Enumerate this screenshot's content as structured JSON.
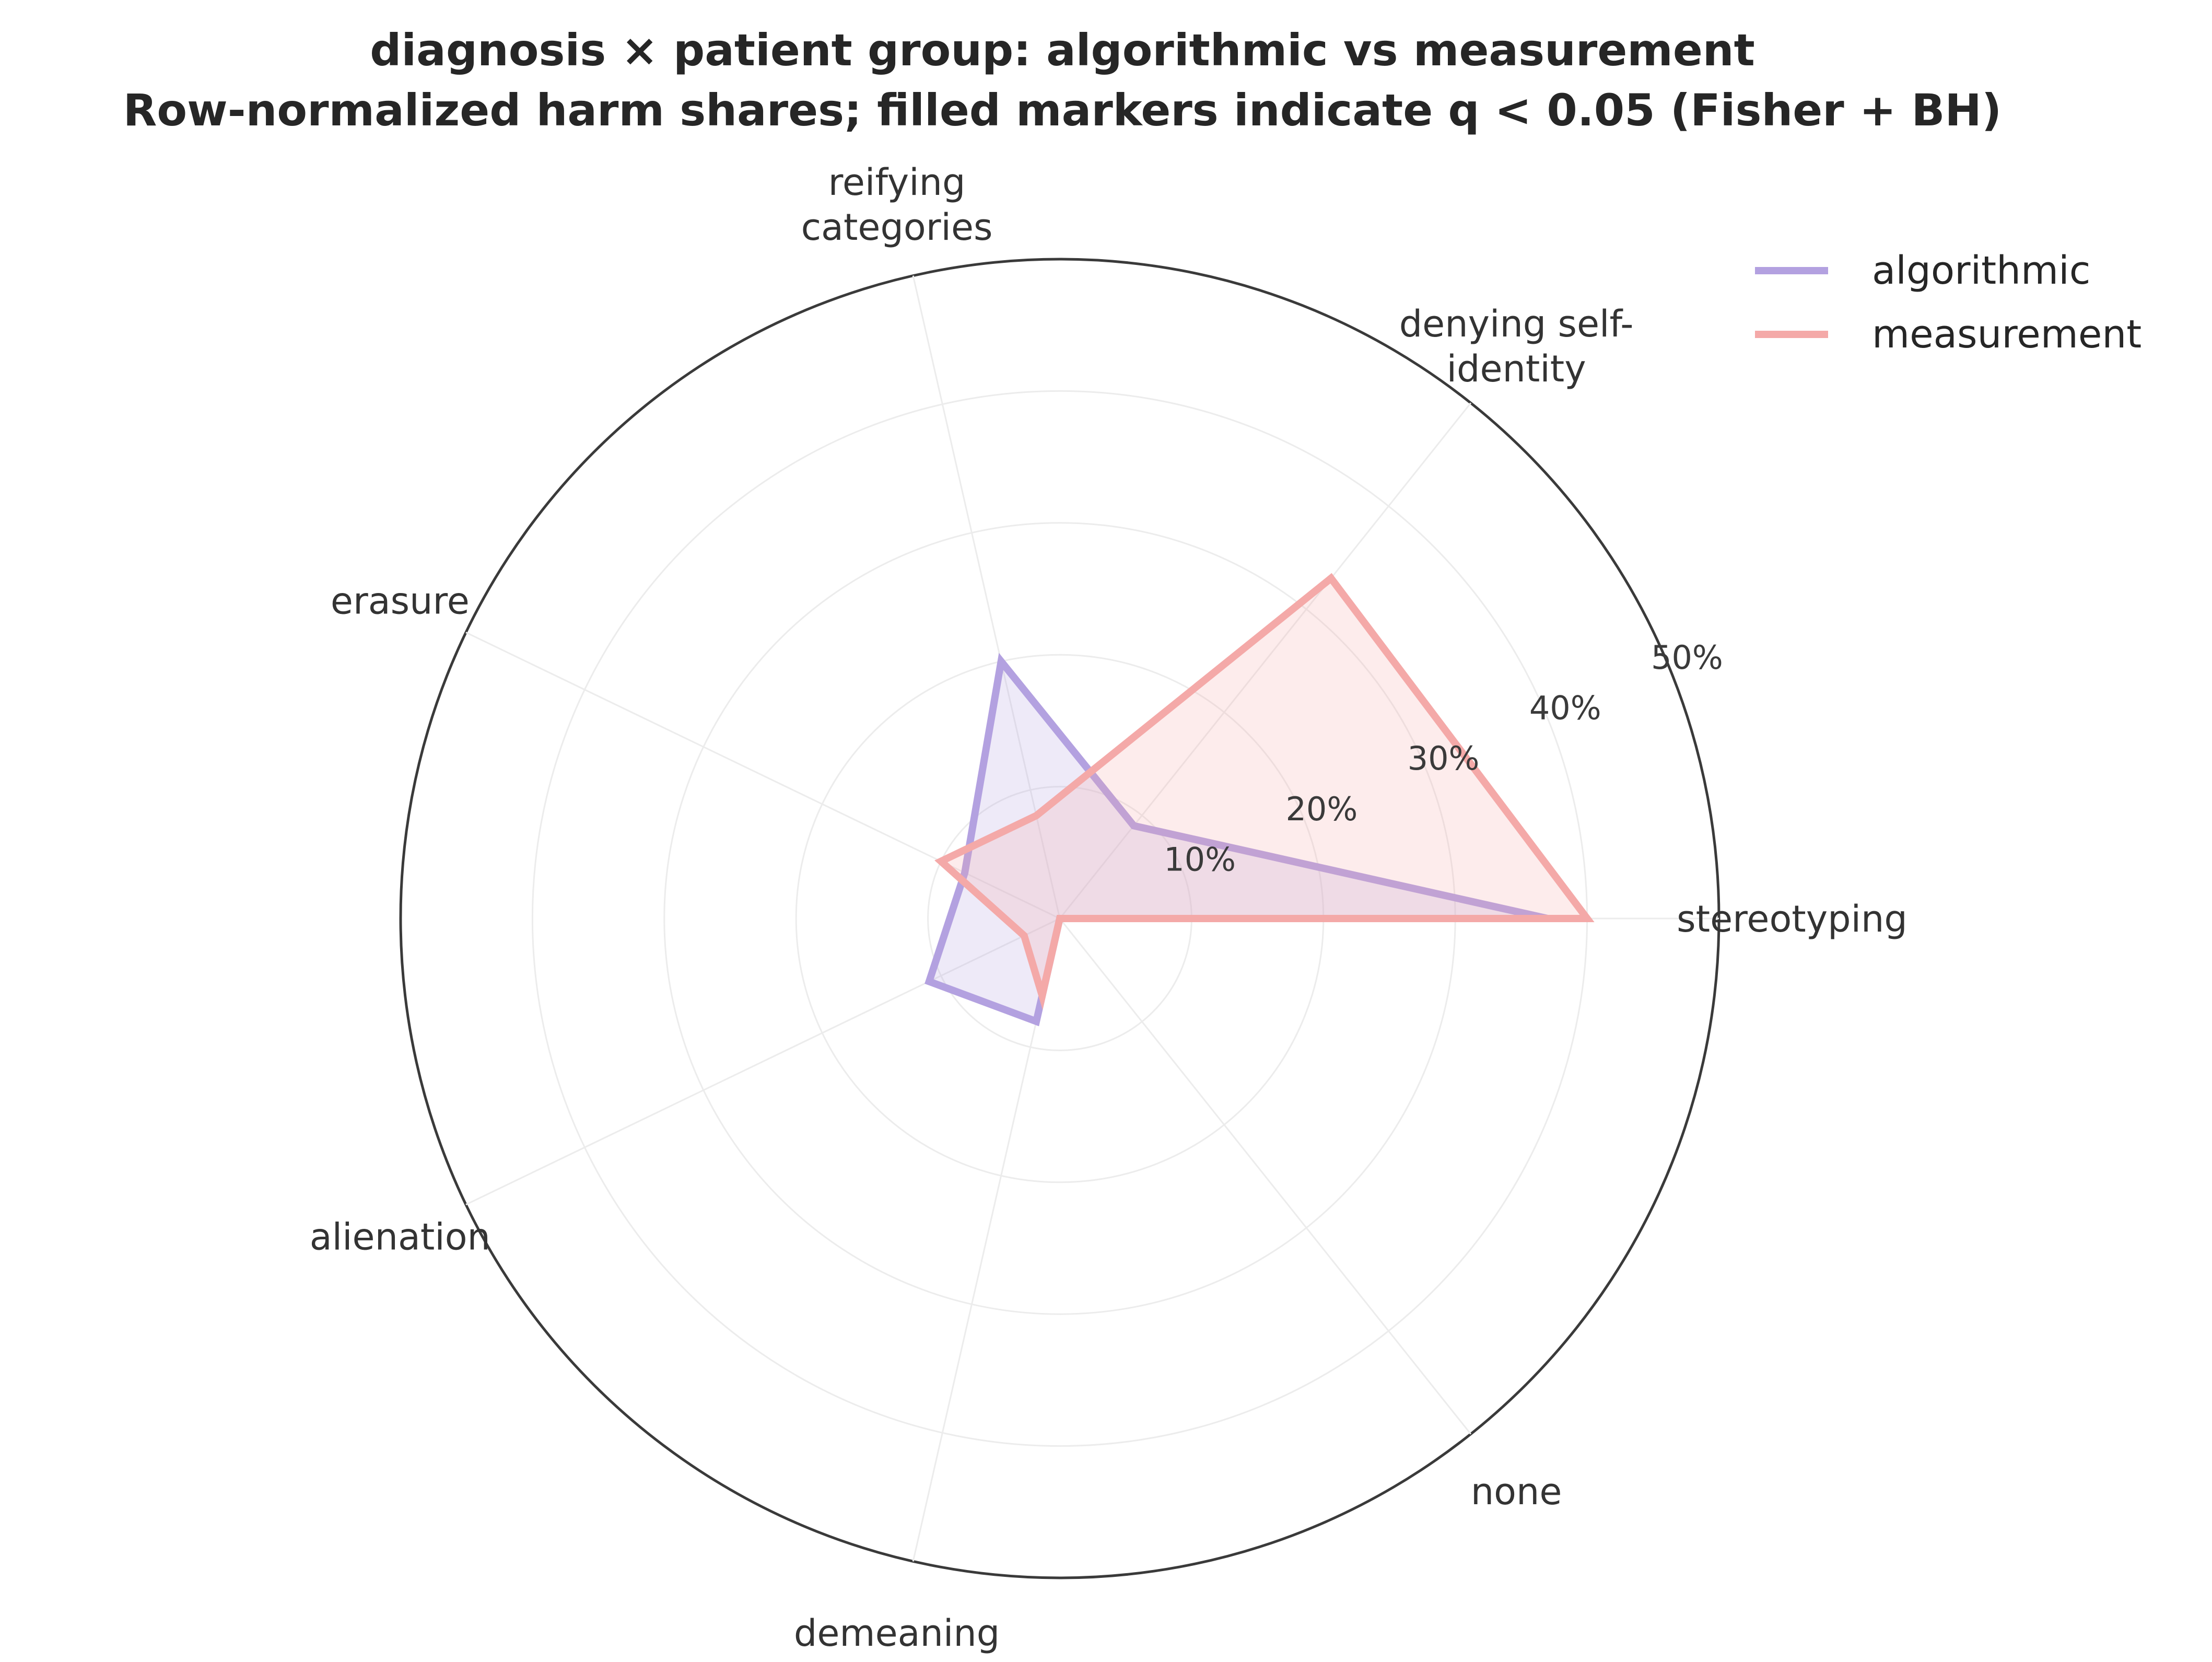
{
  "chart_data": {
    "type": "radar",
    "title": "diagnosis × patient group: algorithmic vs measurement",
    "subtitle": "Row-normalized harm shares; filled markers indicate q < 0.05 (Fisher + BH)",
    "categories": [
      "stereotyping",
      "denying self-identity",
      "reifying categories",
      "erasure",
      "alienation",
      "demeaning",
      "none"
    ],
    "category_labels": [
      [
        "stereotyping"
      ],
      [
        "denying self-",
        "identity"
      ],
      [
        "reifying",
        "categories"
      ],
      [
        "erasure"
      ],
      [
        "alienation"
      ],
      [
        "demeaning"
      ],
      [
        "none"
      ]
    ],
    "rlim": [
      0,
      50
    ],
    "r_ticks": [
      10,
      20,
      30,
      40,
      50
    ],
    "r_tick_labels": [
      "10%",
      "20%",
      "30%",
      "40%",
      "50%"
    ],
    "grid": true,
    "legend_position": "top-right",
    "series": [
      {
        "name": "algorithmic",
        "color": "#b3a1e0",
        "values": [
          37,
          9,
          20,
          8,
          11,
          8,
          0
        ]
      },
      {
        "name": "measurement",
        "color": "#f4a9a8",
        "values": [
          40,
          33,
          8,
          10,
          3,
          6,
          0
        ]
      }
    ]
  }
}
